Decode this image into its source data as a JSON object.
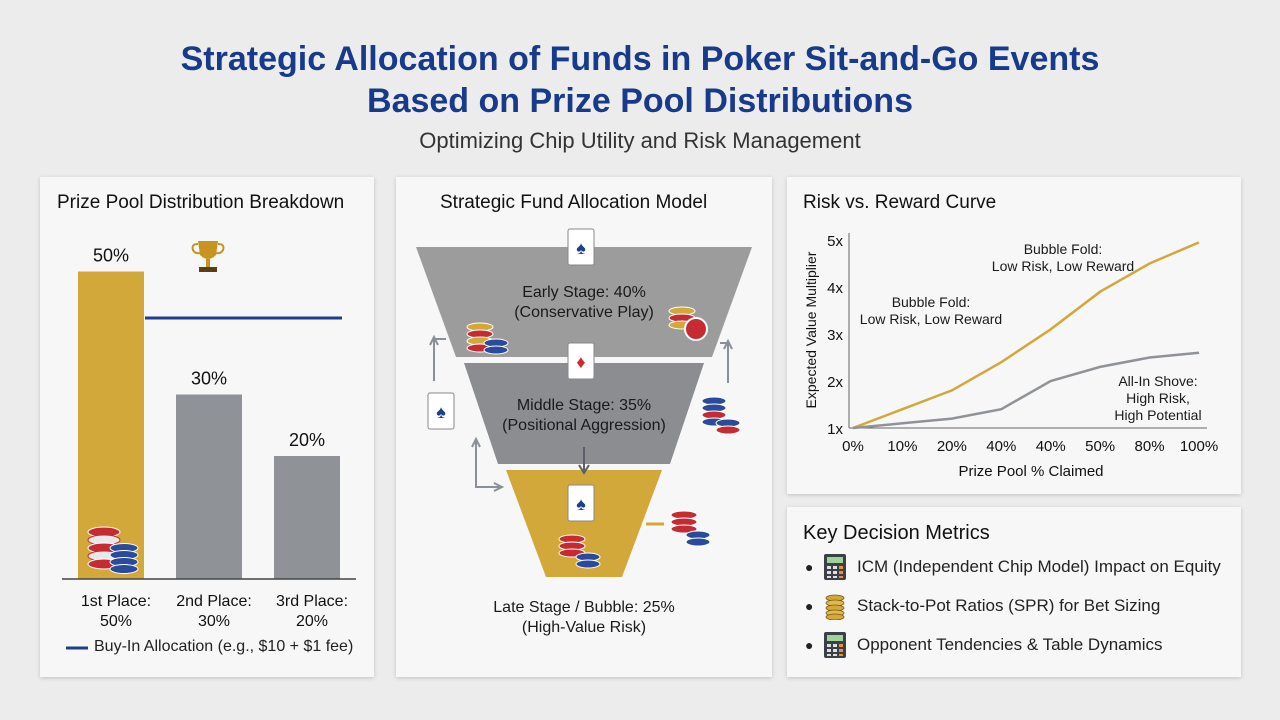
{
  "header": {
    "title_line1": "Strategic Allocation of Funds in Poker Sit-and-Go Events",
    "title_line2": "Based on Prize Pool Distributions",
    "subtitle": "Optimizing Chip Utility and Risk Management"
  },
  "prize_panel": {
    "title": "Prize Pool Distribution Breakdown",
    "legend_label": "Buy-In Allocation (e.g., $10 + $1 fee)",
    "trophy_icon": "trophy-icon",
    "colors": {
      "first": "#d2a83a",
      "other": "#8f9297",
      "line": "#1d3f8c"
    }
  },
  "chart_data": {
    "type": "bar",
    "categories": [
      "1st Place:\n50%",
      "2nd Place:\n30%",
      "3rd Place:\n20%"
    ],
    "values": [
      50,
      30,
      20
    ],
    "data_labels": [
      "50%",
      "30%",
      "20%"
    ],
    "ylim": [
      0,
      60
    ]
  },
  "funnel_panel": {
    "title": "Strategic Fund Allocation Model",
    "stages": [
      {
        "line1": "Early Stage: 40%",
        "line2": "(Conservative Play)",
        "color": "#9c9c9c"
      },
      {
        "line1": "Middle Stage: 35%",
        "line2": "(Positional Aggression)",
        "color": "#8c8d90"
      },
      {
        "line1": "",
        "line2": "",
        "color": "#d2a83a"
      }
    ],
    "bottom_label_line1": "Late Stage / Bubble: 25%",
    "bottom_label_line2": "(High-Value Risk)"
  },
  "risk_panel": {
    "title": "Risk vs. Reward Curve",
    "ylabel": "Expected Value Multiplier",
    "xlabel": "Prize Pool % Claimed",
    "y_ticks": [
      "1x",
      "2x",
      "3x",
      "4x",
      "5x"
    ],
    "x_ticks": [
      "0%",
      "10%",
      "20%",
      "40%",
      "40%",
      "50%",
      "80%",
      "100%"
    ],
    "series": [
      {
        "color": "#d2a83a",
        "values": [
          1.0,
          1.4,
          1.8,
          2.4,
          3.1,
          3.9,
          4.5,
          4.95
        ]
      },
      {
        "color": "#8f9297",
        "values": [
          1.0,
          1.1,
          1.2,
          1.4,
          2.0,
          2.3,
          2.5,
          2.6
        ]
      }
    ],
    "annotations": [
      {
        "line1": "Bubble Fold:",
        "line2": "Low Risk, Low Reward"
      },
      {
        "line1": "Bubble Fold:",
        "line2": "Low Risk, Low Reward"
      },
      {
        "line1": "All-In Shove:",
        "line2": "High Risk,",
        "line3": "High Potential"
      }
    ]
  },
  "metrics_panel": {
    "title": "Key Decision Metrics",
    "items": [
      {
        "label": "ICM (Independent Chip Model) Impact on Equity",
        "icon": "calculator-icon"
      },
      {
        "label": "Stack-to-Pot Ratios (SPR) for Bet Sizing",
        "icon": "chip-stack-icon"
      },
      {
        "label": "Opponent Tendencies & Table Dynamics",
        "icon": "calculator-icon"
      }
    ]
  }
}
